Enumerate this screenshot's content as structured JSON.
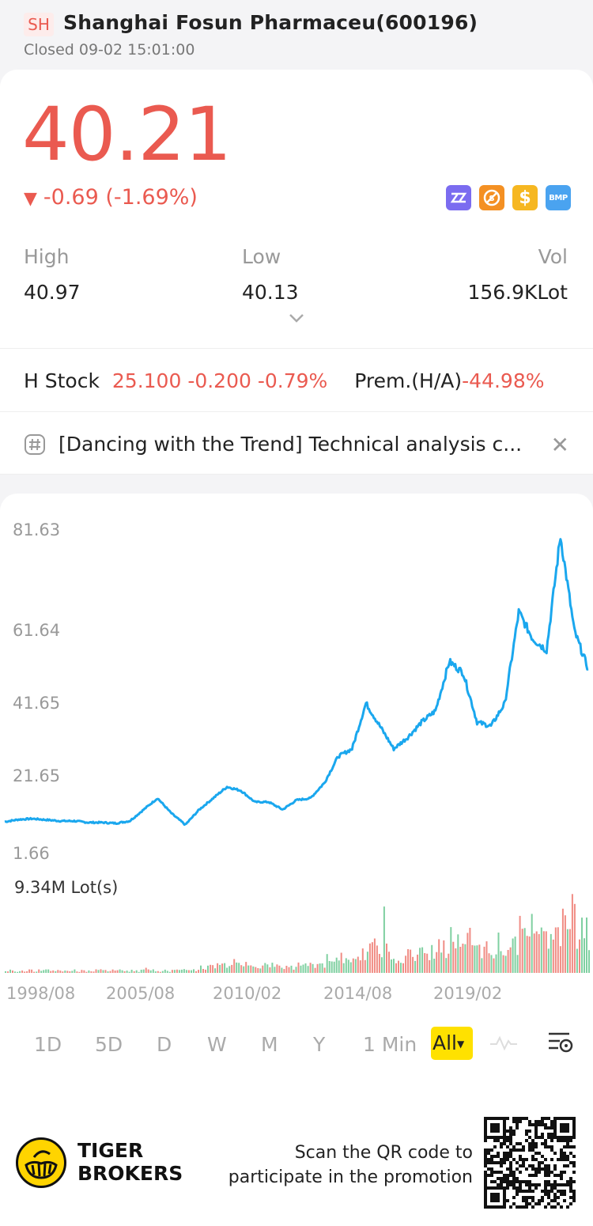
{
  "header": {
    "market_badge": "SH",
    "title": "Shanghai Fosun Pharmaceu(600196)",
    "status": "Closed 09-02 15:01:00"
  },
  "quote": {
    "price": "40.21",
    "change": "-0.69 (-1.69%)",
    "direction_icon": "down-triangle-icon",
    "colors": {
      "down": "#ea5a50",
      "accent": "#ffe100"
    },
    "tag_icons": [
      "zz-icon",
      "no-short-icon",
      "margin-dollar-icon",
      "bmp-icon"
    ],
    "stats": {
      "high_label": "High",
      "high_value": "40.97",
      "low_label": "Low",
      "low_value": "40.13",
      "vol_label": "Vol",
      "vol_value": "156.9KLot"
    }
  },
  "h_stock": {
    "label": "H Stock",
    "values": "25.100 -0.200 -0.79%",
    "premium_label": "Prem.(H/A)",
    "premium_value": "-44.98%"
  },
  "news": {
    "text": "[Dancing with the Trend] Technical analysis c..."
  },
  "chart": {
    "y_labels": [
      "81.63",
      "61.64",
      "41.65",
      "21.65",
      "1.66"
    ],
    "volume_label": "9.34M Lot(s)",
    "x_labels": [
      "1998/08",
      "2005/08",
      "2010/02",
      "2014/08",
      "2019/02"
    ]
  },
  "chart_data": {
    "type": "line",
    "series": [
      {
        "x": [
          "1998/08",
          "1999/08",
          "2000/08",
          "2001/08",
          "2002/08",
          "2003/08",
          "2004/08",
          "2005/08",
          "2006/08",
          "2007/02",
          "2007/08",
          "2008/02",
          "2008/08",
          "2009/02",
          "2009/08",
          "2010/02",
          "2010/08",
          "2011/02",
          "2011/08",
          "2012/02",
          "2012/08",
          "2013/02",
          "2013/08",
          "2014/02",
          "2014/08",
          "2015/02",
          "2015/06",
          "2015/12",
          "2016/06",
          "2016/12",
          "2017/06",
          "2017/12",
          "2018/06",
          "2018/12",
          "2019/06",
          "2019/12",
          "2020/06",
          "2020/10",
          "2021/02",
          "2021/06",
          "2021/10",
          "2022/02",
          "2022/09"
        ],
        "values": [
          4.8,
          5.4,
          5.6,
          5.3,
          5.0,
          5.0,
          4.6,
          4.6,
          4.4,
          5.0,
          8.0,
          11.0,
          7.0,
          4.0,
          8.0,
          11.0,
          14.0,
          13.0,
          10.0,
          10.0,
          8.0,
          10.5,
          11.0,
          15.0,
          22.0,
          24.0,
          36.0,
          30.0,
          24.0,
          27.0,
          31.0,
          34.0,
          47.0,
          44.0,
          31.0,
          30.0,
          36.0,
          60.0,
          53.0,
          50.0,
          80.0,
          55.0,
          45.0
        ]
      }
    ],
    "x_axis_labels": [
      "1998/08",
      "2005/08",
      "2010/02",
      "2014/08",
      "2019/02"
    ],
    "y_axis_labels": [
      "81.63",
      "61.64",
      "41.65",
      "21.65",
      "1.66"
    ],
    "ylim": [
      1.66,
      81.63
    ],
    "line_color": "#1aa7ee",
    "volume": {
      "label": "9.34M Lot(s)",
      "max": 9.34,
      "unit": "M Lot(s)",
      "up_color": "#7fd0a1",
      "down_color": "#f08c84"
    },
    "grid": false
  },
  "tabs": {
    "items": [
      "1D",
      "5D",
      "D",
      "W",
      "M",
      "Y",
      "1 Min"
    ],
    "selected": "All"
  },
  "footer": {
    "brand_line1": "TIGER",
    "brand_line2": "BROKERS",
    "promo_line1": "Scan the QR code to",
    "promo_line2": "participate in the promotion"
  }
}
